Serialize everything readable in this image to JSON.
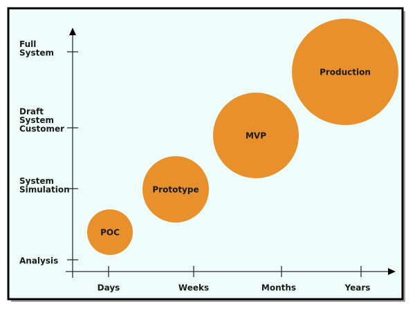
{
  "y_axis": {
    "labels": [
      [
        "Analysis"
      ],
      [
        "System",
        "Simulation"
      ],
      [
        "Draft",
        "System",
        "Customer"
      ],
      [
        "Full",
        "System"
      ]
    ]
  },
  "x_axis": {
    "labels": [
      "Days",
      "Weeks",
      "Months",
      "Years"
    ]
  },
  "nodes": [
    {
      "label": "POC"
    },
    {
      "label": "Prototype"
    },
    {
      "label": "MVP"
    },
    {
      "label": "Production"
    }
  ]
}
